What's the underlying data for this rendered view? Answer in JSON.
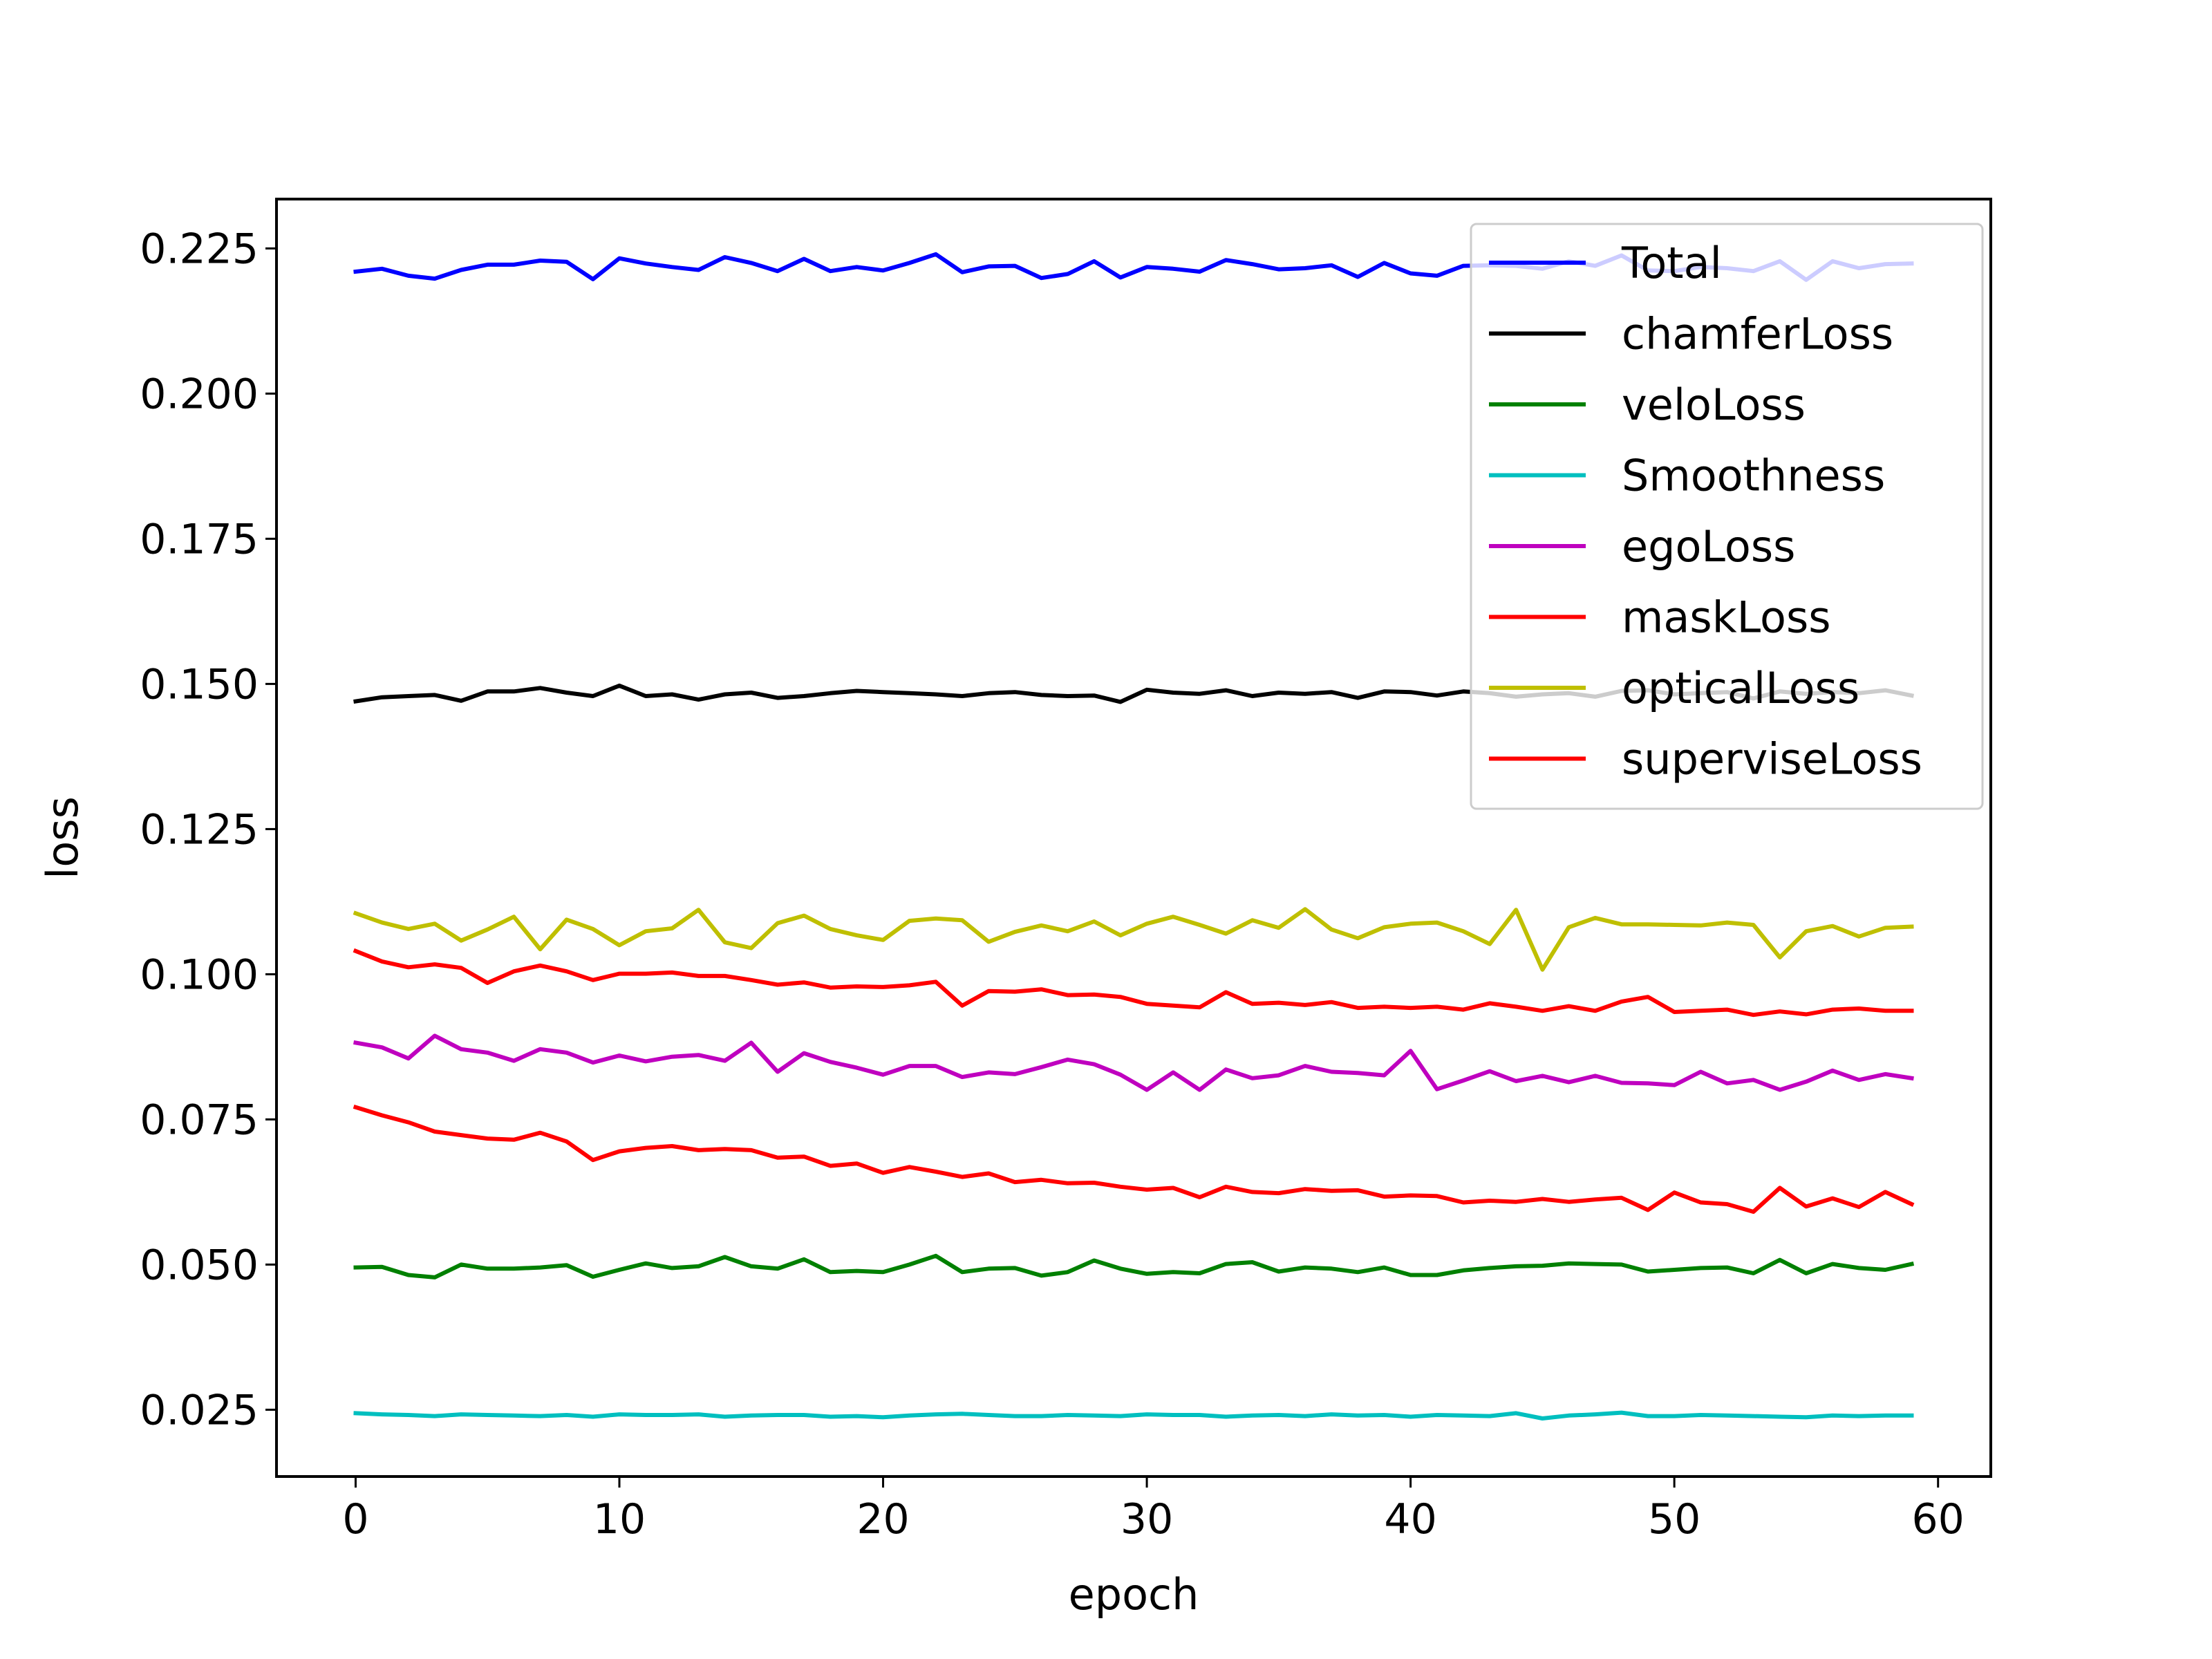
{
  "chart_data": {
    "type": "line",
    "title": "",
    "xlabel": "epoch",
    "ylabel": "loss",
    "xlim": [
      -3,
      62
    ],
    "ylim": [
      0.0135,
      0.2335
    ],
    "xticks": [
      0,
      10,
      20,
      30,
      40,
      50,
      60
    ],
    "yticks": [
      0.025,
      0.05,
      0.075,
      0.1,
      0.125,
      0.15,
      0.175,
      0.2,
      0.225
    ],
    "ytick_labels": [
      "0.025",
      "0.050",
      "0.075",
      "0.100",
      "0.125",
      "0.150",
      "0.175",
      "0.200",
      "0.225"
    ],
    "grid": false,
    "legend_position": "top-right",
    "x": [
      0,
      1,
      2,
      3,
      4,
      5,
      6,
      7,
      8,
      9,
      10,
      11,
      12,
      13,
      14,
      15,
      16,
      17,
      18,
      19,
      20,
      21,
      22,
      23,
      24,
      25,
      26,
      27,
      28,
      29,
      30,
      31,
      32,
      33,
      34,
      35,
      36,
      37,
      38,
      39,
      40,
      41,
      42,
      43,
      44,
      45,
      46,
      47,
      48,
      49,
      50,
      51,
      52,
      53,
      54,
      55,
      56,
      57,
      58,
      59
    ],
    "series": [
      {
        "name": "Total",
        "color": "#0000ff",
        "values": [
          0.221,
          0.2215,
          0.2203,
          0.2198,
          0.2213,
          0.2222,
          0.2222,
          0.2229,
          0.2227,
          0.2197,
          0.2233,
          0.2224,
          0.2218,
          0.2213,
          0.2235,
          0.2225,
          0.2211,
          0.2232,
          0.2211,
          0.2218,
          0.2212,
          0.2225,
          0.224,
          0.2209,
          0.2219,
          0.222,
          0.2199,
          0.2206,
          0.2228,
          0.22,
          0.2218,
          0.2215,
          0.221,
          0.223,
          0.2223,
          0.2214,
          0.2216,
          0.2221,
          0.2201,
          0.2225,
          0.2207,
          0.2203,
          0.222,
          0.2221,
          0.222,
          0.2215,
          0.2228,
          0.222,
          0.2238,
          0.2212,
          0.2211,
          0.2218,
          0.2216,
          0.2211,
          0.2228,
          0.2196,
          0.2228,
          0.2216,
          0.2223,
          0.2224
        ]
      },
      {
        "name": "chamferLoss",
        "color": "#000000",
        "values": [
          0.147,
          0.1477,
          0.1479,
          0.1481,
          0.1471,
          0.1487,
          0.1487,
          0.1493,
          0.1485,
          0.1479,
          0.1497,
          0.1479,
          0.1482,
          0.1473,
          0.1482,
          0.1485,
          0.1476,
          0.1479,
          0.1484,
          0.1488,
          0.1486,
          0.1484,
          0.1482,
          0.1479,
          0.1484,
          0.1486,
          0.1481,
          0.1479,
          0.148,
          0.1469,
          0.149,
          0.1485,
          0.1483,
          0.1489,
          0.1479,
          0.1485,
          0.1483,
          0.1486,
          0.1476,
          0.1487,
          0.1486,
          0.148,
          0.1487,
          0.1484,
          0.1478,
          0.1482,
          0.1484,
          0.1478,
          0.1488,
          0.1489,
          0.1482,
          0.1484,
          0.1486,
          0.1475,
          0.1487,
          0.1483,
          0.1486,
          0.1484,
          0.1489,
          0.148
        ]
      },
      {
        "name": "veloLoss",
        "color": "#008000",
        "values": [
          0.0495,
          0.0496,
          0.0482,
          0.0478,
          0.05,
          0.0493,
          0.0493,
          0.0495,
          0.0499,
          0.0479,
          0.0491,
          0.0502,
          0.0494,
          0.0497,
          0.0513,
          0.0497,
          0.0493,
          0.0509,
          0.0487,
          0.0489,
          0.0487,
          0.05,
          0.0515,
          0.0487,
          0.0493,
          0.0494,
          0.0481,
          0.0487,
          0.0507,
          0.0493,
          0.0484,
          0.0487,
          0.0485,
          0.0501,
          0.0504,
          0.0488,
          0.0495,
          0.0493,
          0.0487,
          0.0495,
          0.0482,
          0.0482,
          0.049,
          0.0494,
          0.0497,
          0.0498,
          0.0502,
          0.0501,
          0.05,
          0.0488,
          0.0491,
          0.0494,
          0.0495,
          0.0485,
          0.0508,
          0.0485,
          0.0501,
          0.0494,
          0.0491,
          0.0501
        ]
      },
      {
        "name": "Smoothness",
        "color": "#00bfbf",
        "values": [
          0.0244,
          0.0242,
          0.0241,
          0.0239,
          0.0242,
          0.0241,
          0.024,
          0.0239,
          0.0241,
          0.0238,
          0.0242,
          0.0241,
          0.0241,
          0.0242,
          0.0238,
          0.024,
          0.0241,
          0.0241,
          0.0238,
          0.0239,
          0.0237,
          0.024,
          0.0242,
          0.0243,
          0.0241,
          0.0239,
          0.0239,
          0.0241,
          0.024,
          0.0239,
          0.0242,
          0.0241,
          0.0241,
          0.0238,
          0.024,
          0.0241,
          0.0239,
          0.0242,
          0.024,
          0.0241,
          0.0238,
          0.0241,
          0.024,
          0.0239,
          0.0244,
          0.0235,
          0.024,
          0.0242,
          0.0245,
          0.0239,
          0.0239,
          0.0241,
          0.024,
          0.0239,
          0.0238,
          0.0237,
          0.024,
          0.0239,
          0.024,
          0.024
        ]
      },
      {
        "name": "egoLoss",
        "color": "#bf00bf",
        "values": [
          0.0882,
          0.0874,
          0.0855,
          0.0894,
          0.0871,
          0.0865,
          0.0851,
          0.0871,
          0.0865,
          0.0848,
          0.086,
          0.085,
          0.0858,
          0.0861,
          0.0851,
          0.0882,
          0.0832,
          0.0864,
          0.0849,
          0.0839,
          0.0827,
          0.0842,
          0.0842,
          0.0823,
          0.0831,
          0.0828,
          0.084,
          0.0853,
          0.0845,
          0.0827,
          0.0801,
          0.0831,
          0.0801,
          0.0836,
          0.0821,
          0.0826,
          0.0842,
          0.0832,
          0.083,
          0.0826,
          0.0868,
          0.0802,
          0.0817,
          0.0833,
          0.0816,
          0.0825,
          0.0814,
          0.0825,
          0.0813,
          0.0812,
          0.0809,
          0.0832,
          0.0812,
          0.0818,
          0.0801,
          0.0815,
          0.0834,
          0.0818,
          0.0828,
          0.0821
        ]
      },
      {
        "name": "maskLoss",
        "color": "#ff0000",
        "values": [
          0.104,
          0.1022,
          0.1012,
          0.1017,
          0.1011,
          0.0985,
          0.1005,
          0.1015,
          0.1005,
          0.099,
          0.1001,
          0.1001,
          0.1003,
          0.0997,
          0.0997,
          0.099,
          0.0982,
          0.0986,
          0.0977,
          0.0979,
          0.0978,
          0.0981,
          0.0987,
          0.0946,
          0.0971,
          0.097,
          0.0974,
          0.0964,
          0.0965,
          0.0961,
          0.0949,
          0.0946,
          0.0943,
          0.0969,
          0.0949,
          0.0951,
          0.0947,
          0.0952,
          0.0942,
          0.0944,
          0.0942,
          0.0944,
          0.0939,
          0.095,
          0.0944,
          0.0937,
          0.0945,
          0.0937,
          0.0953,
          0.0961,
          0.0935,
          0.0937,
          0.0939,
          0.093,
          0.0936,
          0.0931,
          0.0939,
          0.0941,
          0.0937,
          0.0937
        ]
      },
      {
        "name": "opticalLoss",
        "color": "#bfbf00",
        "values": [
          0.1105,
          0.1089,
          0.1078,
          0.1087,
          0.1058,
          0.1077,
          0.1099,
          0.1043,
          0.1094,
          0.1078,
          0.105,
          0.1074,
          0.1079,
          0.1111,
          0.1055,
          0.1045,
          0.1088,
          0.1101,
          0.1078,
          0.1067,
          0.1059,
          0.1092,
          0.1096,
          0.1093,
          0.1056,
          0.1073,
          0.1084,
          0.1074,
          0.1091,
          0.1067,
          0.1087,
          0.1099,
          0.1085,
          0.107,
          0.1093,
          0.108,
          0.1112,
          0.1077,
          0.1062,
          0.1081,
          0.1087,
          0.1089,
          0.1074,
          0.1052,
          0.1111,
          0.1008,
          0.1081,
          0.1097,
          0.1086,
          0.1086,
          0.1085,
          0.1084,
          0.1089,
          0.1085,
          0.1029,
          0.1074,
          0.1083,
          0.1065,
          0.108,
          0.1082
        ]
      },
      {
        "name": "superviseLoss",
        "color": "#ff0000",
        "values": [
          0.0771,
          0.0757,
          0.0745,
          0.0729,
          0.0723,
          0.0717,
          0.0715,
          0.0727,
          0.0712,
          0.068,
          0.0695,
          0.0701,
          0.0704,
          0.0697,
          0.0699,
          0.0697,
          0.0684,
          0.0686,
          0.067,
          0.0674,
          0.0658,
          0.0668,
          0.066,
          0.0651,
          0.0657,
          0.0642,
          0.0646,
          0.064,
          0.0641,
          0.0634,
          0.0629,
          0.0632,
          0.0616,
          0.0634,
          0.0625,
          0.0623,
          0.063,
          0.0627,
          0.0628,
          0.0617,
          0.0619,
          0.0618,
          0.0607,
          0.061,
          0.0608,
          0.0613,
          0.0608,
          0.0612,
          0.0615,
          0.0594,
          0.0624,
          0.0607,
          0.0604,
          0.0591,
          0.0632,
          0.06,
          0.0614,
          0.0599,
          0.0625,
          0.0604
        ]
      }
    ]
  }
}
